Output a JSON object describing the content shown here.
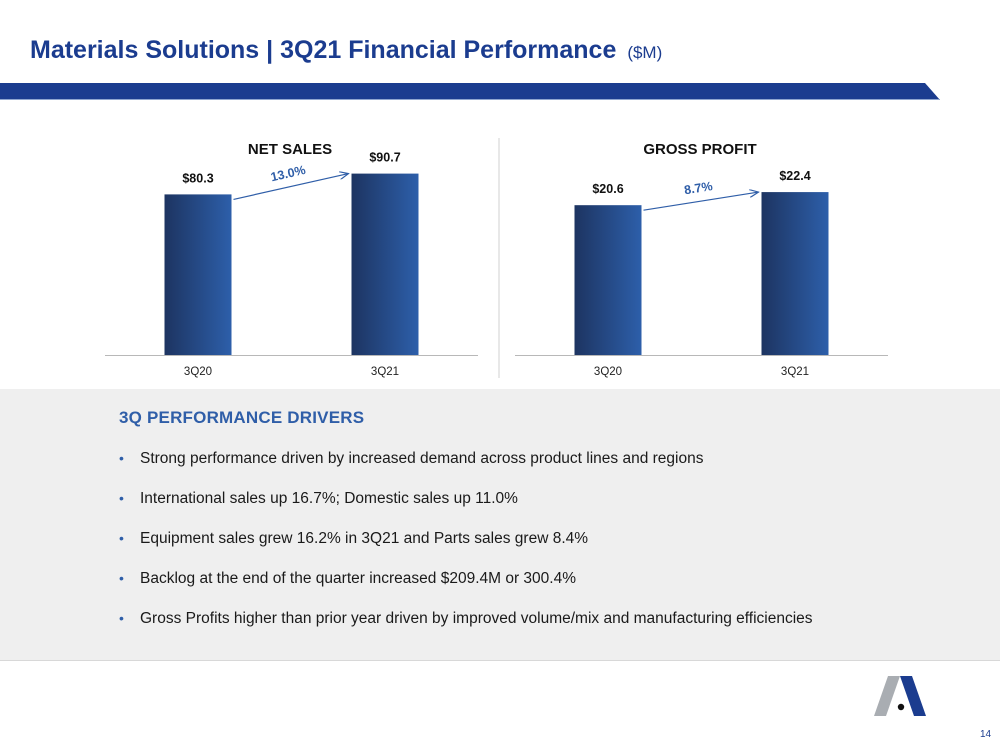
{
  "header": {
    "title": "Materials Solutions | 3Q21 Financial Performance",
    "unit": "($M)"
  },
  "chart_data": [
    {
      "type": "bar",
      "title": "NET SALES",
      "categories": [
        "3Q20",
        "3Q21"
      ],
      "values": [
        80.3,
        90.7
      ],
      "value_labels": [
        "$80.3",
        "$90.7"
      ],
      "growth_label": "13.0%",
      "ylim": [
        0,
        100
      ]
    },
    {
      "type": "bar",
      "title": "GROSS PROFIT",
      "categories": [
        "3Q20",
        "3Q21"
      ],
      "values": [
        20.6,
        22.4
      ],
      "value_labels": [
        "$20.6",
        "$22.4"
      ],
      "growth_label": "8.7%",
      "ylim": [
        0,
        27.5
      ]
    }
  ],
  "drivers": {
    "heading": "3Q PERFORMANCE DRIVERS",
    "bullet_char": "•",
    "items": [
      "Strong performance driven by increased demand across product lines and regions",
      "International sales up 16.7%; Domestic sales up 11.0%",
      "Equipment sales grew 16.2% in 3Q21 and Parts sales grew 8.4%",
      "Backlog at the end of the quarter increased $209.4M or 300.4%",
      "Gross Profits higher than prior year driven by improved volume/mix and manufacturing efficiencies"
    ]
  },
  "footer": {
    "page_number": "14",
    "logo_icon": "company-logo-icon"
  },
  "colors": {
    "brand_blue": "#1b3c8f",
    "accent_blue": "#2f5ea8",
    "bar_dark": "#1d3461",
    "bar_light": "#2d5faa"
  }
}
